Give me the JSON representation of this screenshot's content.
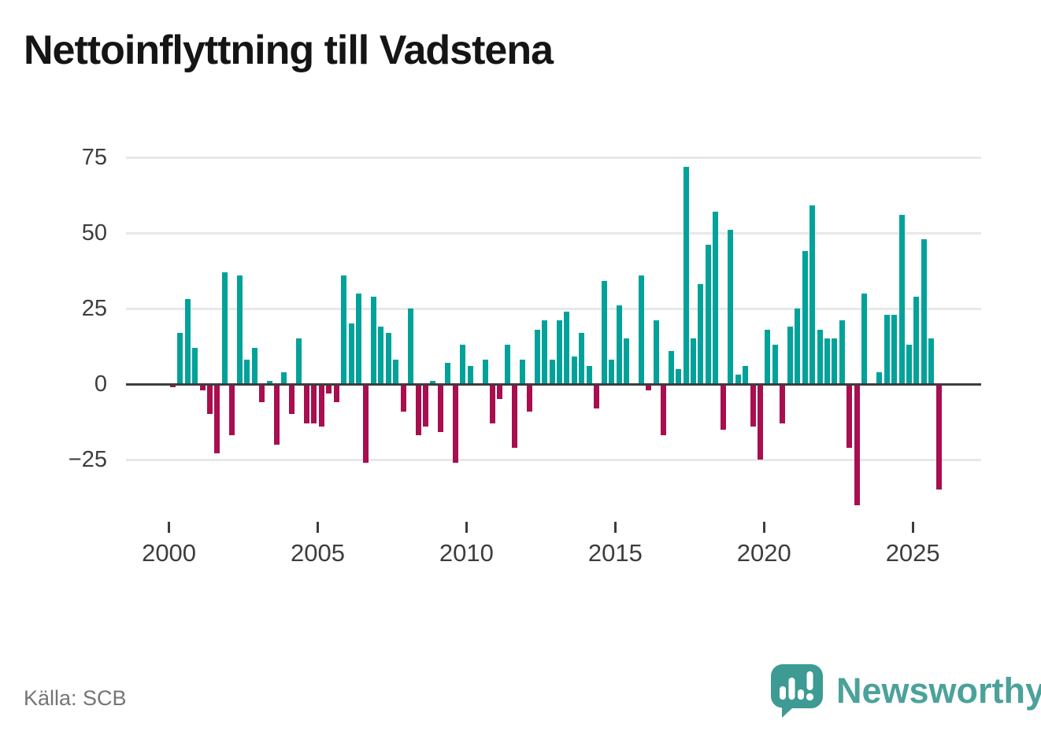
{
  "title": "Nettoinflyttning till Vadstena",
  "source": "Källa: SCB",
  "branding": {
    "name": "Newsworthy",
    "logo_icon": "newsworthy-speech-bubble-bar-chart-icon"
  },
  "colors": {
    "positive_bar": "#00a29a",
    "negative_bar": "#a90e4f",
    "axis_line": "#3d3d3d",
    "gridline": "#e8e8e8",
    "tick_label": "#3d3d3d",
    "title_text": "#151515",
    "source_text": "#757575",
    "brand_teal": "#4ba29b",
    "logo_bubble_teal": "#3d9b94"
  },
  "chart_data": {
    "type": "bar",
    "title": "Nettoinflyttning till Vadstena",
    "xlabel": "",
    "ylabel": "",
    "frequency": "quarterly",
    "grid": "horizontal",
    "legend_position": "none",
    "ylim": [
      -45,
      80
    ],
    "yticks": [
      75,
      50,
      25,
      0,
      -25
    ],
    "xticks": [
      2000,
      2005,
      2010,
      2015,
      2020,
      2025
    ],
    "x": [
      "2000 Q1",
      "2000 Q2",
      "2000 Q3",
      "2000 Q4",
      "2001 Q1",
      "2001 Q2",
      "2001 Q3",
      "2001 Q4",
      "2002 Q1",
      "2002 Q2",
      "2002 Q3",
      "2002 Q4",
      "2003 Q1",
      "2003 Q2",
      "2003 Q3",
      "2003 Q4",
      "2004 Q1",
      "2004 Q2",
      "2004 Q3",
      "2004 Q4",
      "2005 Q1",
      "2005 Q2",
      "2005 Q3",
      "2005 Q4",
      "2006 Q1",
      "2006 Q2",
      "2006 Q3",
      "2006 Q4",
      "2007 Q1",
      "2007 Q2",
      "2007 Q3",
      "2007 Q4",
      "2008 Q1",
      "2008 Q2",
      "2008 Q3",
      "2008 Q4",
      "2009 Q1",
      "2009 Q2",
      "2009 Q3",
      "2009 Q4",
      "2010 Q1",
      "2010 Q2",
      "2010 Q3",
      "2010 Q4",
      "2011 Q1",
      "2011 Q2",
      "2011 Q3",
      "2011 Q4",
      "2012 Q1",
      "2012 Q2",
      "2012 Q3",
      "2012 Q4",
      "2013 Q1",
      "2013 Q2",
      "2013 Q3",
      "2013 Q4",
      "2014 Q1",
      "2014 Q2",
      "2014 Q3",
      "2014 Q4",
      "2015 Q1",
      "2015 Q2",
      "2015 Q3",
      "2015 Q4",
      "2016 Q1",
      "2016 Q2",
      "2016 Q3",
      "2016 Q4",
      "2017 Q1",
      "2017 Q2",
      "2017 Q3",
      "2017 Q4",
      "2018 Q1",
      "2018 Q2",
      "2018 Q3",
      "2018 Q4",
      "2019 Q1",
      "2019 Q2",
      "2019 Q3",
      "2019 Q4",
      "2020 Q1",
      "2020 Q2",
      "2020 Q3",
      "2020 Q4",
      "2021 Q1",
      "2021 Q2",
      "2021 Q3",
      "2021 Q4",
      "2022 Q1",
      "2022 Q2",
      "2022 Q3",
      "2022 Q4",
      "2023 Q1",
      "2023 Q2",
      "2023 Q3",
      "2023 Q4",
      "2024 Q1",
      "2024 Q2",
      "2024 Q3",
      "2024 Q4",
      "2025 Q1",
      "2025 Q2",
      "2025 Q3",
      "2025 Q4"
    ],
    "values": [
      -1,
      17,
      28,
      12,
      -2,
      -10,
      -23,
      37,
      -17,
      36,
      8,
      12,
      -6,
      1,
      -20,
      4,
      -10,
      15,
      -13,
      -13,
      -14,
      -3,
      -6,
      36,
      20,
      30,
      -26,
      29,
      19,
      17,
      8,
      -9,
      25,
      -17,
      -14,
      1,
      -16,
      7,
      -26,
      13,
      6,
      0,
      8,
      -13,
      -5,
      13,
      -21,
      8,
      -9,
      18,
      21,
      8,
      21,
      24,
      9,
      17,
      6,
      -8,
      34,
      8,
      26,
      15,
      0,
      36,
      -2,
      21,
      -17,
      11,
      5,
      72,
      15,
      33,
      46,
      57,
      -15,
      51,
      3,
      6,
      -14,
      -25,
      18,
      13,
      -13,
      19,
      25,
      44,
      59,
      18,
      15,
      15,
      21,
      -21,
      -40,
      30,
      0,
      4,
      23,
      23,
      56,
      13,
      29,
      48,
      15,
      -35
    ]
  }
}
